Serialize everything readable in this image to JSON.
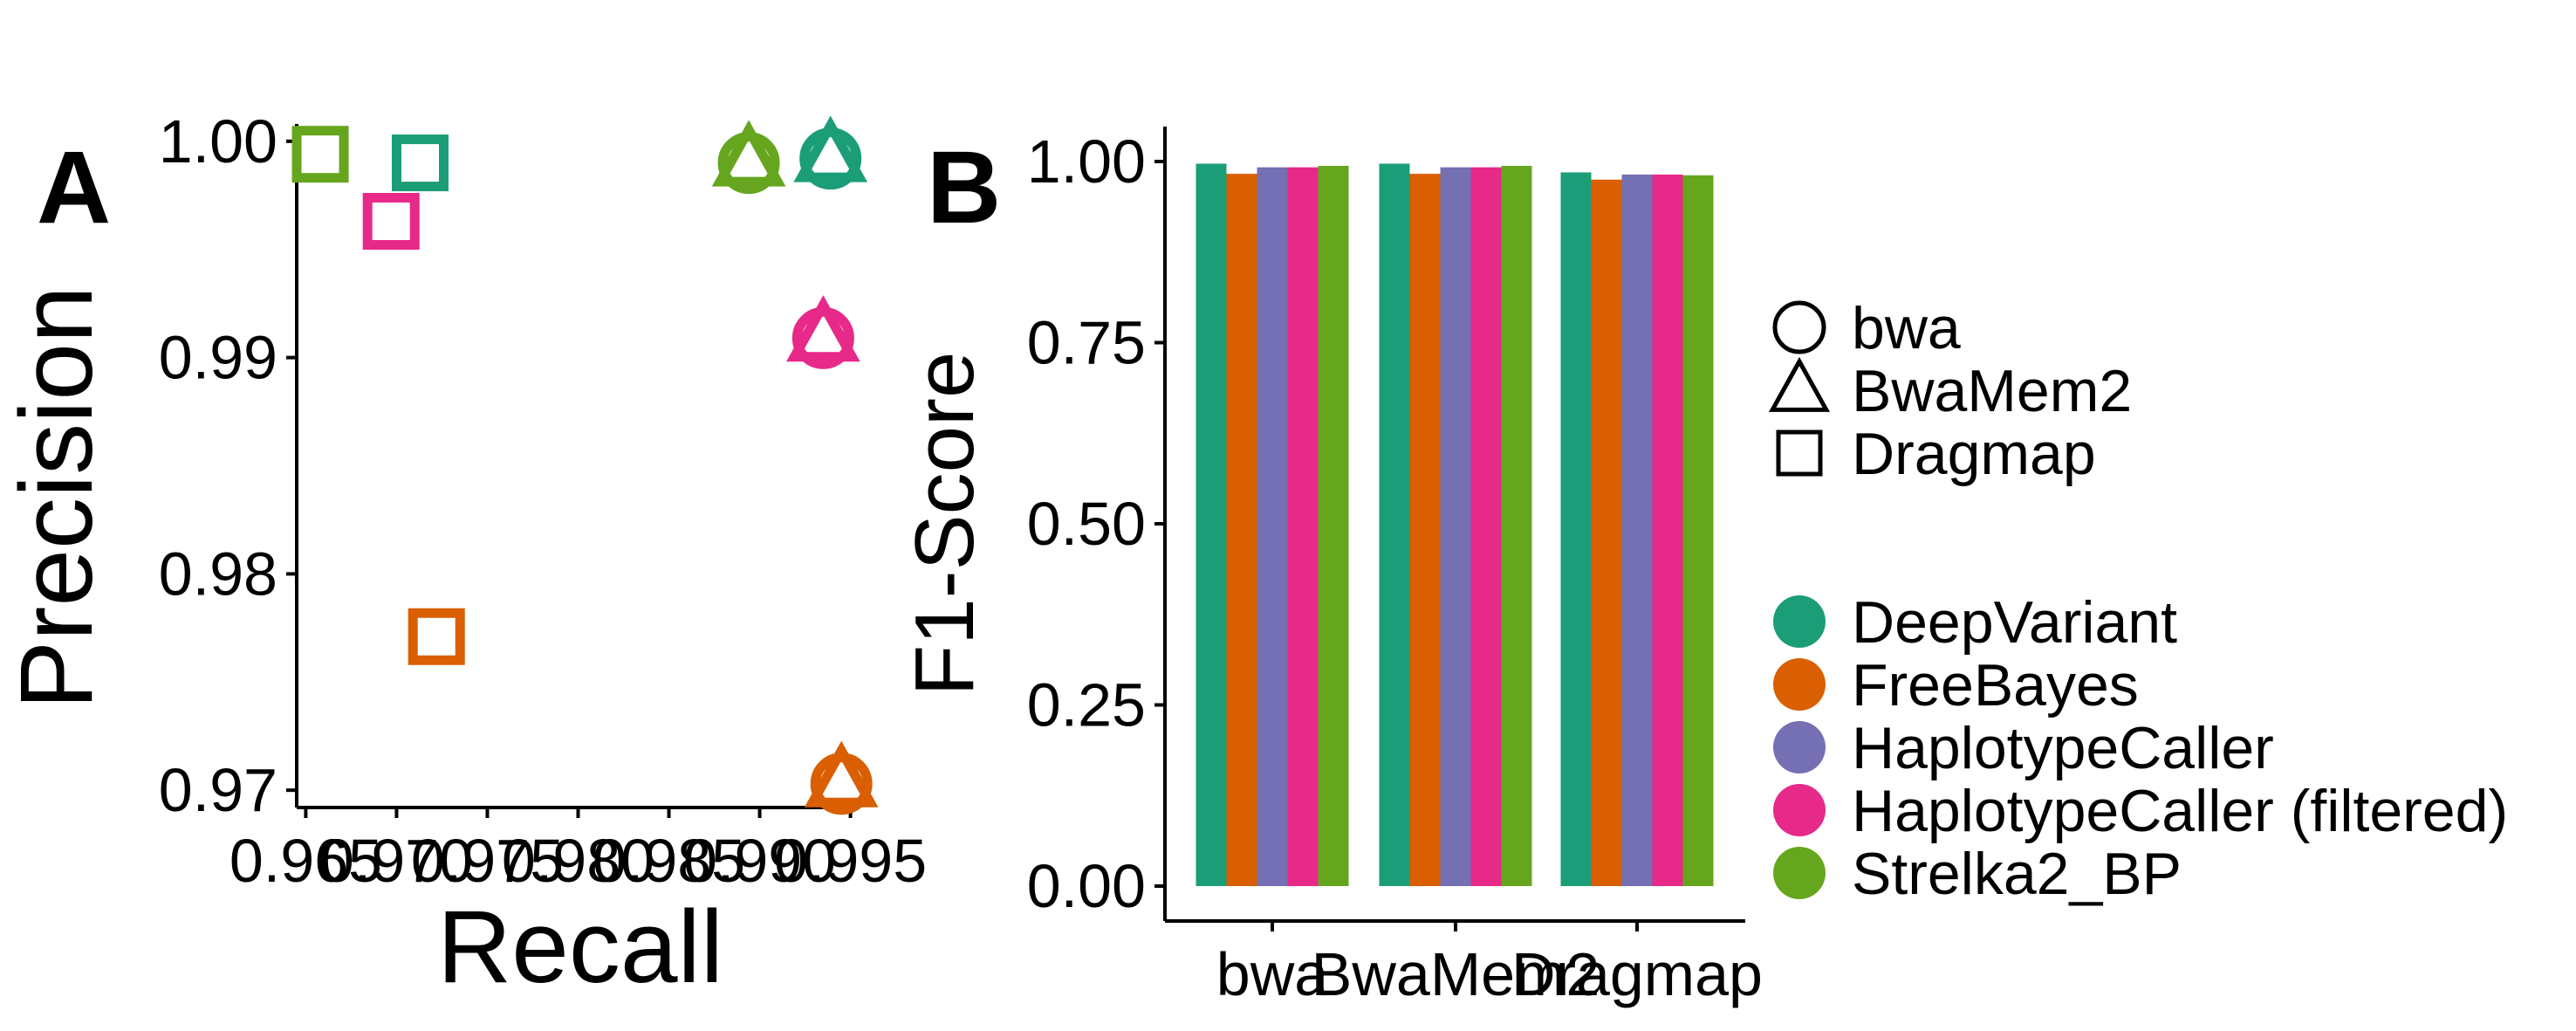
{
  "chart_data": [
    {
      "panel": "A",
      "type": "scatter",
      "title": "",
      "xlabel": "Recall",
      "ylabel": "Precision",
      "xlim": [
        0.9645,
        0.9955
      ],
      "ylim": [
        0.9692,
        1.0008
      ],
      "xticks": [
        0.965,
        0.97,
        0.975,
        0.98,
        0.985,
        0.99,
        0.995
      ],
      "xtick_labels": [
        "0.965",
        "0.970",
        "0.975",
        "0.980",
        "0.985",
        "0.990",
        "0.995"
      ],
      "yticks": [
        0.97,
        0.98,
        0.99,
        1.0
      ],
      "ytick_labels": [
        "0.97",
        "0.98",
        "0.99",
        "1.00"
      ],
      "points": [
        {
          "aligner": "Dragmap",
          "caller": "Strelka2_BP",
          "recall": 0.9658,
          "precision": 0.9994
        },
        {
          "aligner": "Dragmap",
          "caller": "DeepVariant",
          "recall": 0.9713,
          "precision": 0.999
        },
        {
          "aligner": "Dragmap",
          "caller": "HaplotypeCaller (filtered)",
          "recall": 0.9697,
          "precision": 0.9963
        },
        {
          "aligner": "Dragmap",
          "caller": "FreeBayes",
          "recall": 0.9722,
          "precision": 0.9771
        },
        {
          "aligner": "BwaMem2",
          "caller": "Strelka2_BP",
          "recall": 0.9894,
          "precision": 0.9991
        },
        {
          "aligner": "BwaMem2",
          "caller": "DeepVariant",
          "recall": 0.9939,
          "precision": 0.9993
        },
        {
          "aligner": "BwaMem2",
          "caller": "HaplotypeCaller (filtered)",
          "recall": 0.9935,
          "precision": 0.991
        },
        {
          "aligner": "BwaMem2",
          "caller": "FreeBayes",
          "recall": 0.9945,
          "precision": 0.9704
        },
        {
          "aligner": "bwa",
          "caller": "Strelka2_BP",
          "recall": 0.9894,
          "precision": 0.999
        },
        {
          "aligner": "bwa",
          "caller": "DeepVariant",
          "recall": 0.9939,
          "precision": 0.9992
        },
        {
          "aligner": "bwa",
          "caller": "HaplotypeCaller (filtered)",
          "recall": 0.9935,
          "precision": 0.9909
        },
        {
          "aligner": "bwa",
          "caller": "FreeBayes",
          "recall": 0.9945,
          "precision": 0.9703
        }
      ]
    },
    {
      "panel": "B",
      "type": "bar",
      "title": "",
      "xlabel": "",
      "ylabel": "F1-Score",
      "ylim": [
        0,
        1.05
      ],
      "yticks": [
        0,
        0.25,
        0.5,
        0.75,
        1.0
      ],
      "ytick_labels": [
        "0.00",
        "0.25",
        "0.50",
        "0.75",
        "1.00"
      ],
      "categories": [
        "bwa",
        "BwaMem2",
        "Dragmap"
      ],
      "series": [
        {
          "name": "DeepVariant",
          "values": [
            0.997,
            0.997,
            0.985
          ]
        },
        {
          "name": "FreeBayes",
          "values": [
            0.983,
            0.983,
            0.975
          ]
        },
        {
          "name": "HaplotypeCaller",
          "values": [
            0.992,
            0.992,
            0.982
          ]
        },
        {
          "name": "HaplotypeCaller (filtered)",
          "values": [
            0.992,
            0.992,
            0.982
          ]
        },
        {
          "name": "Strelka2_BP",
          "values": [
            0.994,
            0.994,
            0.981
          ]
        }
      ]
    }
  ],
  "panel_labels": {
    "a": "A",
    "b": "B"
  },
  "legend": {
    "shapes": [
      {
        "label": "bwa",
        "shape": "circle-icon"
      },
      {
        "label": "BwaMem2",
        "shape": "triangle-icon"
      },
      {
        "label": "Dragmap",
        "shape": "square-icon"
      }
    ],
    "callers": [
      {
        "label": "DeepVariant",
        "color": "#1B9E77"
      },
      {
        "label": "FreeBayes",
        "color": "#D95F02"
      },
      {
        "label": "HaplotypeCaller",
        "color": "#7570B3"
      },
      {
        "label": "HaplotypeCaller (filtered)",
        "color": "#E7298A"
      },
      {
        "label": "Strelka2_BP",
        "color": "#66A61E"
      }
    ]
  }
}
